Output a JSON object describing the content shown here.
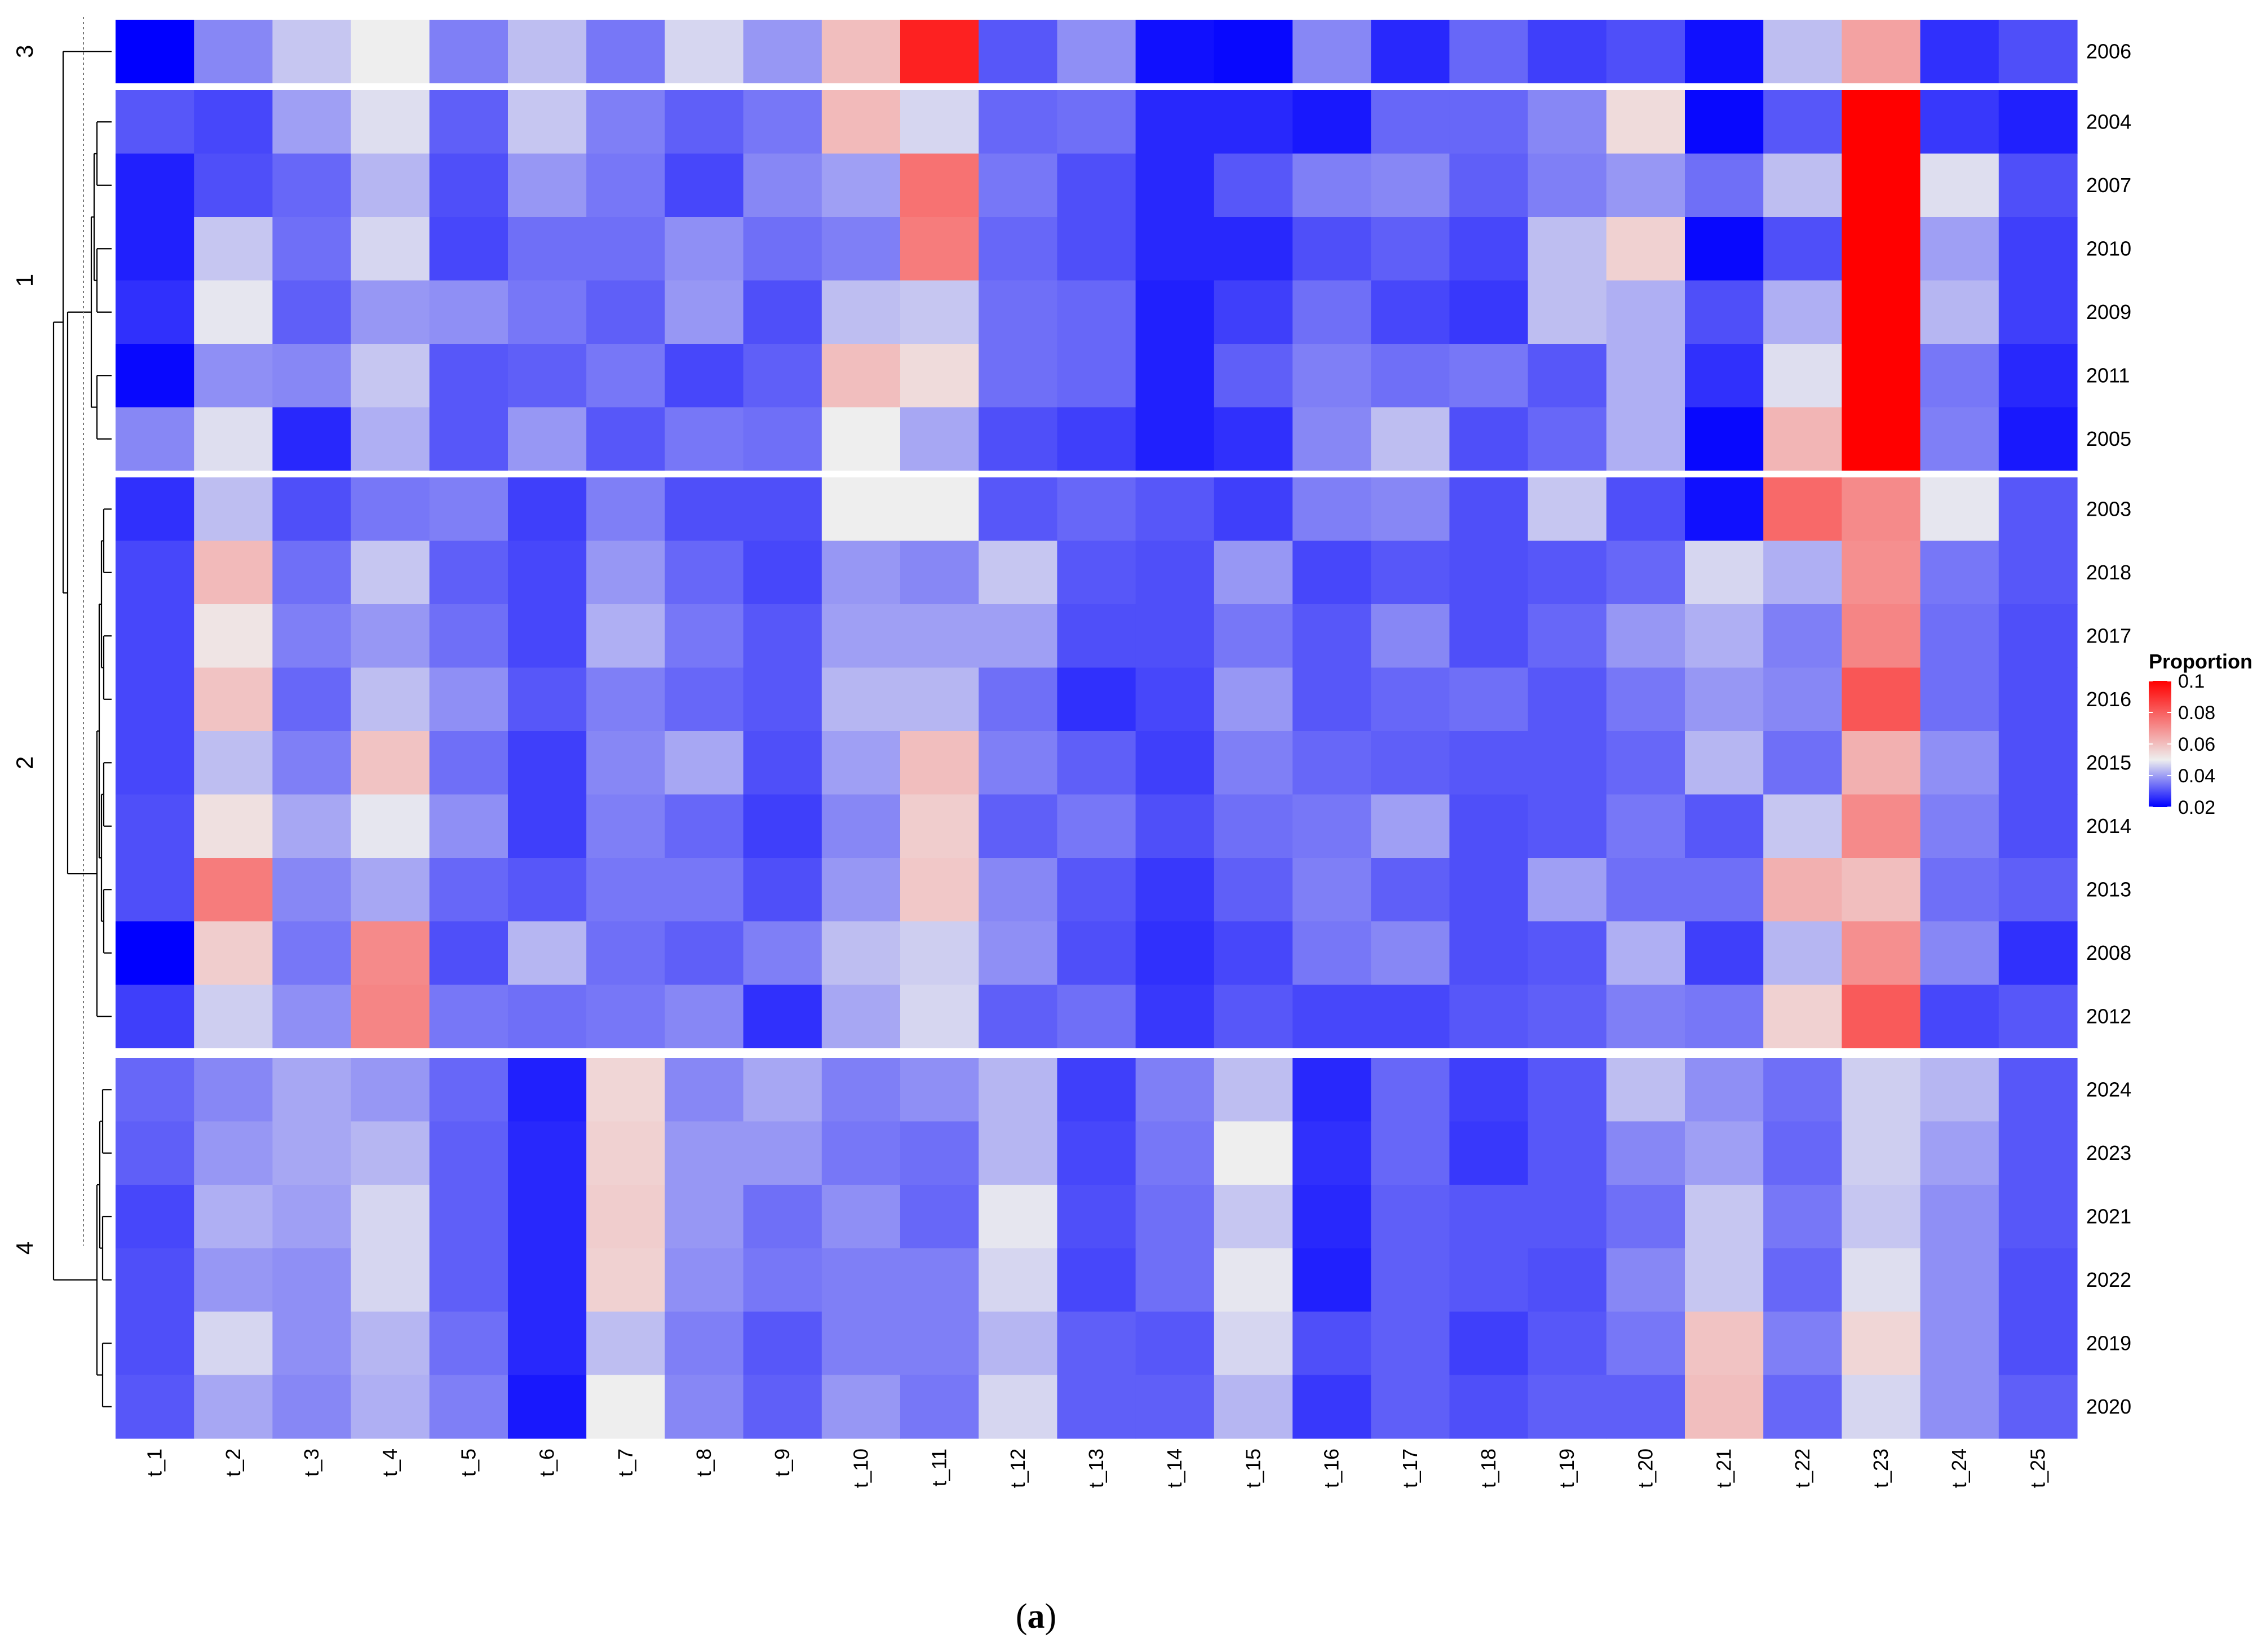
{
  "figure": {
    "caption_open": "(",
    "caption_letter": "a",
    "caption_close": ")"
  },
  "chart_data": {
    "type": "heatmap",
    "title": "",
    "xlabel": "",
    "ylabel": "",
    "columns": [
      "t_1",
      "t_2",
      "t_3",
      "t_4",
      "t_5",
      "t_6",
      "t_7",
      "t_8",
      "t_9",
      "t_10",
      "t_11",
      "t_12",
      "t_13",
      "t_14",
      "t_15",
      "t_16",
      "t_17",
      "t_18",
      "t_19",
      "t_20",
      "t_21",
      "t_22",
      "t_23",
      "t_24",
      "t_25"
    ],
    "legend": {
      "title": "Proportion",
      "ticks": [
        "0.1",
        "0.08",
        "0.06",
        "0.04",
        "0.02"
      ],
      "range": [
        0.02,
        0.1
      ],
      "colors": [
        "#0000ff",
        "#eeeeee",
        "#ff0000"
      ],
      "midpoint": 0.05
    },
    "clusters": [
      {
        "label": "3",
        "rows": [
          {
            "year": "2006",
            "values": [
              0.02,
              0.037,
              0.045,
              0.05,
              0.036,
              0.044,
              0.035,
              0.047,
              0.039,
              0.06,
              0.093,
              0.031,
              0.038,
              0.022,
              0.021,
              0.037,
              0.025,
              0.033,
              0.028,
              0.03,
              0.022,
              0.044,
              0.066,
              0.026,
              0.03
            ]
          }
        ]
      },
      {
        "label": "1",
        "rows": [
          {
            "year": "2004",
            "values": [
              0.031,
              0.029,
              0.04,
              0.048,
              0.032,
              0.045,
              0.036,
              0.032,
              0.035,
              0.061,
              0.047,
              0.033,
              0.034,
              0.025,
              0.025,
              0.023,
              0.033,
              0.033,
              0.037,
              0.054,
              0.021,
              0.031,
              0.1,
              0.027,
              0.024
            ]
          },
          {
            "year": "2007",
            "values": [
              0.024,
              0.03,
              0.033,
              0.043,
              0.03,
              0.039,
              0.035,
              0.029,
              0.037,
              0.04,
              0.076,
              0.035,
              0.03,
              0.025,
              0.031,
              0.036,
              0.037,
              0.032,
              0.036,
              0.039,
              0.034,
              0.044,
              0.1,
              0.048,
              0.03
            ]
          },
          {
            "year": "2010",
            "values": [
              0.024,
              0.045,
              0.034,
              0.047,
              0.029,
              0.034,
              0.034,
              0.038,
              0.034,
              0.036,
              0.074,
              0.033,
              0.03,
              0.025,
              0.025,
              0.03,
              0.032,
              0.029,
              0.044,
              0.056,
              0.021,
              0.03,
              0.1,
              0.04,
              0.028
            ]
          },
          {
            "year": "2009",
            "values": [
              0.026,
              0.049,
              0.032,
              0.039,
              0.038,
              0.035,
              0.032,
              0.039,
              0.03,
              0.044,
              0.045,
              0.034,
              0.033,
              0.024,
              0.028,
              0.034,
              0.029,
              0.027,
              0.044,
              0.042,
              0.03,
              0.042,
              0.1,
              0.043,
              0.028
            ]
          },
          {
            "year": "2011",
            "values": [
              0.021,
              0.038,
              0.037,
              0.045,
              0.031,
              0.032,
              0.035,
              0.029,
              0.032,
              0.06,
              0.054,
              0.034,
              0.033,
              0.024,
              0.032,
              0.036,
              0.034,
              0.035,
              0.031,
              0.042,
              0.026,
              0.048,
              0.1,
              0.035,
              0.025
            ]
          },
          {
            "year": "2005",
            "values": [
              0.037,
              0.048,
              0.025,
              0.042,
              0.031,
              0.039,
              0.031,
              0.035,
              0.034,
              0.05,
              0.041,
              0.03,
              0.028,
              0.024,
              0.026,
              0.037,
              0.044,
              0.03,
              0.033,
              0.042,
              0.021,
              0.062,
              0.1,
              0.036,
              0.023
            ]
          }
        ]
      },
      {
        "label": "2",
        "rows": [
          {
            "year": "2003",
            "values": [
              0.026,
              0.044,
              0.03,
              0.035,
              0.036,
              0.028,
              0.036,
              0.03,
              0.03,
              0.05,
              0.05,
              0.031,
              0.033,
              0.031,
              0.028,
              0.036,
              0.037,
              0.03,
              0.045,
              0.03,
              0.022,
              0.078,
              0.071,
              0.049,
              0.031
            ]
          },
          {
            "year": "2018",
            "values": [
              0.029,
              0.061,
              0.034,
              0.045,
              0.032,
              0.029,
              0.039,
              0.033,
              0.029,
              0.039,
              0.037,
              0.045,
              0.031,
              0.03,
              0.039,
              0.029,
              0.031,
              0.03,
              0.031,
              0.033,
              0.047,
              0.042,
              0.07,
              0.035,
              0.031
            ]
          },
          {
            "year": "2017",
            "values": [
              0.029,
              0.052,
              0.036,
              0.039,
              0.034,
              0.029,
              0.042,
              0.035,
              0.031,
              0.04,
              0.04,
              0.04,
              0.03,
              0.03,
              0.035,
              0.031,
              0.037,
              0.03,
              0.033,
              0.039,
              0.042,
              0.036,
              0.072,
              0.034,
              0.03
            ]
          },
          {
            "year": "2016",
            "values": [
              0.029,
              0.059,
              0.033,
              0.044,
              0.038,
              0.031,
              0.036,
              0.033,
              0.031,
              0.043,
              0.043,
              0.034,
              0.026,
              0.029,
              0.039,
              0.031,
              0.033,
              0.034,
              0.031,
              0.035,
              0.039,
              0.037,
              0.082,
              0.034,
              0.03
            ]
          },
          {
            "year": "2015",
            "values": [
              0.029,
              0.044,
              0.036,
              0.059,
              0.034,
              0.028,
              0.037,
              0.041,
              0.03,
              0.04,
              0.06,
              0.036,
              0.032,
              0.028,
              0.036,
              0.033,
              0.032,
              0.031,
              0.031,
              0.033,
              0.043,
              0.034,
              0.063,
              0.038,
              0.03
            ]
          },
          {
            "year": "2014",
            "values": [
              0.03,
              0.053,
              0.041,
              0.049,
              0.038,
              0.028,
              0.036,
              0.033,
              0.028,
              0.037,
              0.057,
              0.032,
              0.035,
              0.03,
              0.034,
              0.035,
              0.04,
              0.03,
              0.031,
              0.035,
              0.031,
              0.045,
              0.071,
              0.036,
              0.03
            ]
          },
          {
            "year": "2013",
            "values": [
              0.03,
              0.074,
              0.037,
              0.041,
              0.033,
              0.031,
              0.035,
              0.035,
              0.03,
              0.039,
              0.058,
              0.037,
              0.031,
              0.027,
              0.032,
              0.036,
              0.032,
              0.03,
              0.04,
              0.034,
              0.034,
              0.063,
              0.06,
              0.034,
              0.032
            ]
          },
          {
            "year": "2008",
            "values": [
              0.02,
              0.057,
              0.035,
              0.071,
              0.03,
              0.043,
              0.034,
              0.032,
              0.036,
              0.044,
              0.046,
              0.038,
              0.03,
              0.026,
              0.029,
              0.035,
              0.037,
              0.03,
              0.031,
              0.042,
              0.028,
              0.043,
              0.07,
              0.037,
              0.026
            ]
          },
          {
            "year": "2012",
            "values": [
              0.028,
              0.046,
              0.038,
              0.072,
              0.035,
              0.034,
              0.035,
              0.037,
              0.026,
              0.041,
              0.047,
              0.032,
              0.034,
              0.027,
              0.031,
              0.029,
              0.029,
              0.031,
              0.032,
              0.036,
              0.035,
              0.056,
              0.081,
              0.029,
              0.031
            ]
          }
        ]
      },
      {
        "label": "4",
        "rows": [
          {
            "year": "2024",
            "values": [
              0.033,
              0.037,
              0.041,
              0.039,
              0.033,
              0.024,
              0.055,
              0.037,
              0.041,
              0.036,
              0.038,
              0.043,
              0.028,
              0.036,
              0.044,
              0.025,
              0.033,
              0.028,
              0.031,
              0.044,
              0.038,
              0.034,
              0.046,
              0.043,
              0.031
            ]
          },
          {
            "year": "2023",
            "values": [
              0.032,
              0.039,
              0.041,
              0.043,
              0.032,
              0.025,
              0.056,
              0.039,
              0.039,
              0.035,
              0.034,
              0.043,
              0.029,
              0.035,
              0.05,
              0.026,
              0.033,
              0.027,
              0.031,
              0.037,
              0.04,
              0.033,
              0.046,
              0.04,
              0.031
            ]
          },
          {
            "year": "2021",
            "values": [
              0.029,
              0.042,
              0.04,
              0.047,
              0.032,
              0.025,
              0.057,
              0.039,
              0.034,
              0.038,
              0.033,
              0.049,
              0.03,
              0.034,
              0.045,
              0.025,
              0.032,
              0.031,
              0.031,
              0.034,
              0.045,
              0.035,
              0.045,
              0.038,
              0.031
            ]
          },
          {
            "year": "2022",
            "values": [
              0.03,
              0.039,
              0.038,
              0.047,
              0.032,
              0.025,
              0.056,
              0.038,
              0.035,
              0.036,
              0.036,
              0.047,
              0.029,
              0.034,
              0.049,
              0.024,
              0.032,
              0.031,
              0.03,
              0.037,
              0.045,
              0.033,
              0.048,
              0.038,
              0.03
            ]
          },
          {
            "year": "2019",
            "values": [
              0.03,
              0.047,
              0.038,
              0.043,
              0.034,
              0.025,
              0.044,
              0.036,
              0.031,
              0.036,
              0.036,
              0.043,
              0.032,
              0.031,
              0.047,
              0.03,
              0.032,
              0.028,
              0.031,
              0.035,
              0.059,
              0.036,
              0.055,
              0.038,
              0.03
            ]
          },
          {
            "year": "2020",
            "values": [
              0.031,
              0.041,
              0.037,
              0.042,
              0.036,
              0.023,
              0.05,
              0.037,
              0.032,
              0.039,
              0.035,
              0.047,
              0.032,
              0.032,
              0.043,
              0.027,
              0.032,
              0.03,
              0.032,
              0.032,
              0.06,
              0.033,
              0.047,
              0.038,
              0.032
            ]
          }
        ]
      }
    ]
  }
}
